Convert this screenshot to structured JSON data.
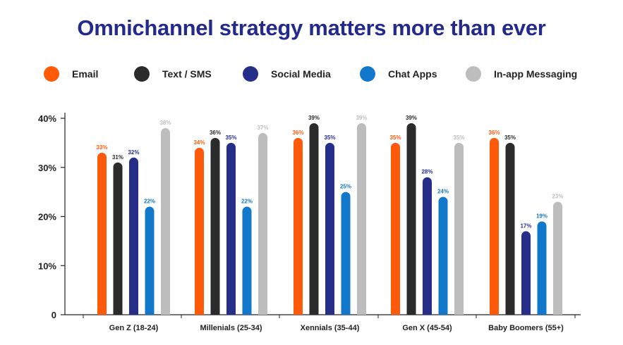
{
  "title": "Omnichannel strategy matters more than ever",
  "colors": {
    "Email": "#ff5a0a",
    "Text / SMS": "#2b2b2b",
    "Social Media": "#262e8a",
    "Chat Apps": "#1278cc",
    "In-app Messaging": "#bdbdbd"
  },
  "chart_data": {
    "type": "bar",
    "title": "Omnichannel strategy matters more than ever",
    "categories": [
      "Gen Z (18-24)",
      "Millenials (25-34)",
      "Xennials (35-44)",
      "Gen X (45-54)",
      "Baby Boomers (55+)"
    ],
    "series": [
      {
        "name": "Email",
        "values": [
          33,
          34,
          36,
          35,
          36
        ],
        "labels": [
          "33%",
          "34%",
          "36%",
          "35%",
          "36%"
        ]
      },
      {
        "name": "Text / SMS",
        "values": [
          31,
          36,
          39,
          39,
          35
        ],
        "labels": [
          "31%",
          "36%",
          "39%",
          "39%",
          "35%"
        ]
      },
      {
        "name": "Social Media",
        "values": [
          32,
          35,
          35,
          28,
          17
        ],
        "labels": [
          "32%",
          "35%",
          "35%",
          "28%",
          "17%"
        ]
      },
      {
        "name": "Chat Apps",
        "values": [
          22,
          22,
          25,
          24,
          19
        ],
        "labels": [
          "22%",
          "22%",
          "25%",
          "24%",
          "19%"
        ]
      },
      {
        "name": "In-app Messaging",
        "values": [
          38,
          37,
          39,
          35,
          23
        ],
        "labels": [
          "38%",
          "37%",
          "39%",
          "35%",
          "23%"
        ]
      }
    ],
    "y_ticks": [
      0,
      10,
      20,
      30,
      40
    ],
    "y_tick_labels": [
      "0",
      "10%",
      "20%",
      "30%",
      "40%"
    ],
    "ylim": [
      0,
      40
    ],
    "legend": "top",
    "grid": false
  }
}
